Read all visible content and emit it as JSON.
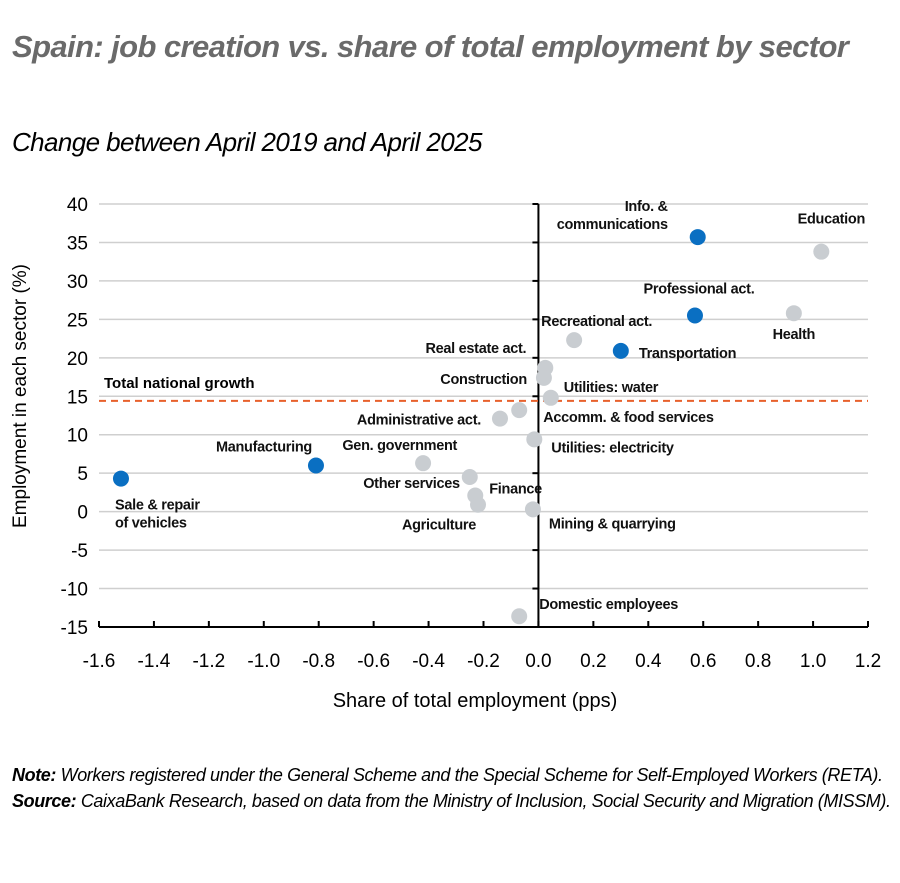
{
  "title": "Spain: job creation vs. share of total employment by sector",
  "subtitle": "Change between April 2019 and April 2025",
  "notes": {
    "note_label": "Note:",
    "note_text": " Workers registered under the General Scheme and the Special Scheme for Self-Employed Workers (RETA).",
    "source_label": "Source:",
    "source_text": " CaixaBank Research, based on data from the Ministry of Inclusion, Social Security and Migration (MISSM)."
  },
  "colors": {
    "highlight": "#0a6fc2",
    "default": "#c9cdd1",
    "reference_line": "#e8612c",
    "grid": "#cfcfcf",
    "axis": "#000000"
  },
  "chart_data": {
    "type": "scatter",
    "title": "Spain: job creation vs. share of total employment by sector",
    "subtitle": "Change between April 2019 and April 2025",
    "xlabel": "Share of total employment (pps)",
    "ylabel": "Employment in each sector (%)",
    "xlim": [
      -1.6,
      1.2
    ],
    "ylim": [
      -15,
      40
    ],
    "xticks": [
      "-1.6",
      "-1.4",
      "-1.2",
      "-1.0",
      "-0.8",
      "-0.6",
      "-0.4",
      "-0.2",
      "0.0",
      "0.2",
      "0.4",
      "0.6",
      "0.8",
      "1.0",
      "1.2"
    ],
    "yticks": [
      "40",
      "35",
      "30",
      "25",
      "20",
      "15",
      "10",
      "5",
      "0",
      "-5",
      "-10",
      "-15"
    ],
    "grid": "horizontal",
    "reference_line": {
      "label": "Total national growth",
      "y": 14.4,
      "style": "dashed"
    },
    "points": [
      {
        "label": "Info. & communications",
        "x": 0.58,
        "y": 35.7,
        "highlight": true
      },
      {
        "label": "Education",
        "x": 1.03,
        "y": 33.8,
        "highlight": false
      },
      {
        "label": "Professional act.",
        "x": 0.57,
        "y": 25.5,
        "highlight": true
      },
      {
        "label": "Health",
        "x": 0.93,
        "y": 25.8,
        "highlight": false
      },
      {
        "label": "Recreational act.",
        "x": 0.13,
        "y": 22.3,
        "highlight": false
      },
      {
        "label": "Transportation",
        "x": 0.3,
        "y": 20.9,
        "highlight": true
      },
      {
        "label": "Real estate act.",
        "x": 0.025,
        "y": 18.7,
        "highlight": false
      },
      {
        "label": "Construction",
        "x": 0.02,
        "y": 17.4,
        "highlight": false
      },
      {
        "label": "Utilities: water",
        "x": 0.045,
        "y": 14.8,
        "highlight": false
      },
      {
        "label": "Accomm. & food services",
        "x": -0.07,
        "y": 13.2,
        "highlight": false
      },
      {
        "label": "Administrative act.",
        "x": -0.14,
        "y": 12.1,
        "highlight": false
      },
      {
        "label": "Utilities: electricity",
        "x": -0.015,
        "y": 9.4,
        "highlight": false
      },
      {
        "label": "Gen. government",
        "x": -0.42,
        "y": 6.3,
        "highlight": false
      },
      {
        "label": "Manufacturing",
        "x": -0.81,
        "y": 6.0,
        "highlight": true
      },
      {
        "label": "Sale & repair of vehicles",
        "x": -1.52,
        "y": 4.3,
        "highlight": true
      },
      {
        "label": "Other services",
        "x": -0.25,
        "y": 4.5,
        "highlight": false
      },
      {
        "label": "Finance",
        "x": -0.23,
        "y": 2.1,
        "highlight": false
      },
      {
        "label": "Agriculture",
        "x": -0.22,
        "y": 0.9,
        "highlight": false
      },
      {
        "label": "Mining & quarrying",
        "x": -0.02,
        "y": 0.3,
        "highlight": false
      },
      {
        "label": "Domestic employees",
        "x": -0.07,
        "y": -13.6,
        "highlight": false
      }
    ]
  },
  "label_positions": {
    "Info. & communications": {
      "lines": [
        "Info. &",
        "communications"
      ],
      "dx": -30,
      "dy": -26,
      "anchor": "end"
    },
    "Education": {
      "lines": [
        "Education"
      ],
      "dx": 10,
      "dy": -28,
      "anchor": "middle"
    },
    "Professional act.": {
      "lines": [
        "Professional act."
      ],
      "dx": 4,
      "dy": -22,
      "anchor": "middle"
    },
    "Health": {
      "lines": [
        "Health"
      ],
      "dx": 0,
      "dy": 26,
      "anchor": "middle"
    },
    "Recreational act.": {
      "lines": [
        "Recreational act."
      ],
      "dx": 78,
      "dy": -14,
      "anchor": "end"
    },
    "Transportation": {
      "lines": [
        "Transportation"
      ],
      "dx": 18,
      "dy": 7,
      "anchor": "start"
    },
    "Real estate act.": {
      "lines": [
        "Real estate act."
      ],
      "dx": -19,
      "dy": -15,
      "anchor": "end"
    },
    "Construction": {
      "lines": [
        "Construction"
      ],
      "dx": -17,
      "dy": 6,
      "anchor": "end"
    },
    "Utilities: water": {
      "lines": [
        "Utilities: water"
      ],
      "dx": 13,
      "dy": -6,
      "anchor": "start"
    },
    "Accomm. & food services": {
      "lines": [
        "Accomm. & food services"
      ],
      "dx": 24,
      "dy": 12,
      "anchor": "start"
    },
    "Administrative act.": {
      "lines": [
        "Administrative act."
      ],
      "dx": -19,
      "dy": 6,
      "anchor": "end"
    },
    "Utilities: electricity": {
      "lines": [
        "Utilities: electricity"
      ],
      "dx": 17,
      "dy": 13,
      "anchor": "start"
    },
    "Gen. government": {
      "lines": [
        "Gen. government"
      ],
      "dx": 34,
      "dy": -13,
      "anchor": "end"
    },
    "Manufacturing": {
      "lines": [
        "Manufacturing"
      ],
      "dx": -4,
      "dy": -14,
      "anchor": "end"
    },
    "Sale & repair of vehicles": {
      "lines": [
        "Sale & repair",
        "of vehicles"
      ],
      "dx": -6,
      "dy": 31,
      "anchor": "start"
    },
    "Other services": {
      "lines": [
        "Other services"
      ],
      "dx": -10,
      "dy": 11,
      "anchor": "end"
    },
    "Finance": {
      "lines": [
        "Finance"
      ],
      "dx": 14,
      "dy": -2,
      "anchor": "start"
    },
    "Agriculture": {
      "lines": [
        "Agriculture"
      ],
      "dx": -2,
      "dy": 25,
      "anchor": "end"
    },
    "Mining & quarrying": {
      "lines": [
        "Mining & quarrying"
      ],
      "dx": 16,
      "dy": 19,
      "anchor": "start"
    },
    "Domestic employees": {
      "lines": [
        "Domestic employees"
      ],
      "dx": 20,
      "dy": -7,
      "anchor": "start"
    }
  }
}
